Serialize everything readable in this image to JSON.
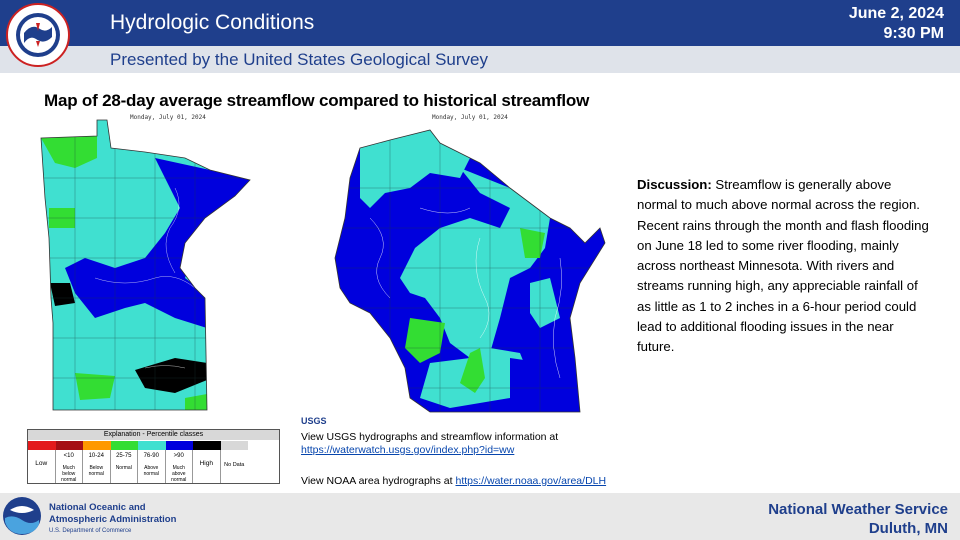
{
  "header": {
    "title": "Hydrologic Conditions",
    "subtitle": "Presented by the United States Geological Survey",
    "date": "June 2, 2024",
    "time": "9:30 PM"
  },
  "maps": {
    "title": "Map of 28-day average streamflow compared to historical streamflow",
    "mn_date": "Monday, July 01, 2024",
    "wi_date": "Monday, July 01, 2024"
  },
  "discussion": {
    "label": "Discussion:",
    "text": " Streamflow is generally above normal to much above normal across the region. Recent rains through the month and flash flooding on June 18 led to some river flooding, mainly across northeast Minnesota. With rivers and streams running high, any appreciable rainfall of as little as 1 to 2 inches in a 6-hour period could lead to additional flooding issues in the near future."
  },
  "legend": {
    "title": "Explanation - Percentile classes",
    "low": "Low",
    "high": "High",
    "no_data": "No Data",
    "classes": [
      {
        "range": "",
        "label": "",
        "color": "#e31a1c"
      },
      {
        "range": "<10",
        "label": "Much below normal",
        "color": "#a50f15"
      },
      {
        "range": "10-24",
        "label": "Below normal",
        "color": "#ff9900"
      },
      {
        "range": "25-75",
        "label": "Normal",
        "color": "#33dd33"
      },
      {
        "range": "76-90",
        "label": "Above normal",
        "color": "#40e0d0"
      },
      {
        "range": ">90",
        "label": "Much above normal",
        "color": "#0000dd"
      },
      {
        "range": "",
        "label": "",
        "color": "#000000"
      },
      {
        "range": "",
        "label": "",
        "color": "#d8d8d8"
      }
    ]
  },
  "links": {
    "usgs_logo": "USGS",
    "usgs_text": "View USGS hydrographs and streamflow information at",
    "usgs_url": "https://waterwatch.usgs.gov/index.php?id=ww",
    "noaa_text": "View NOAA  area hydrographs at ",
    "noaa_url": "https://water.noaa.gov/area/DLH"
  },
  "footer": {
    "noaa_name_1": "National Oceanic and",
    "noaa_name_2": "Atmospheric Administration",
    "noaa_dept": "U.S. Department of Commerce",
    "office_1": "National  Weather  Service",
    "office_2": "Duluth,  MN"
  },
  "icons": {
    "nws": "nws-logo-icon",
    "noaa": "noaa-logo-icon",
    "usgs": "usgs-logo-icon"
  },
  "colors": {
    "header_blue": "#1f3f8c",
    "much_above": "#0000dd",
    "above": "#40e0d0",
    "normal": "#33dd33",
    "high": "#000000"
  }
}
